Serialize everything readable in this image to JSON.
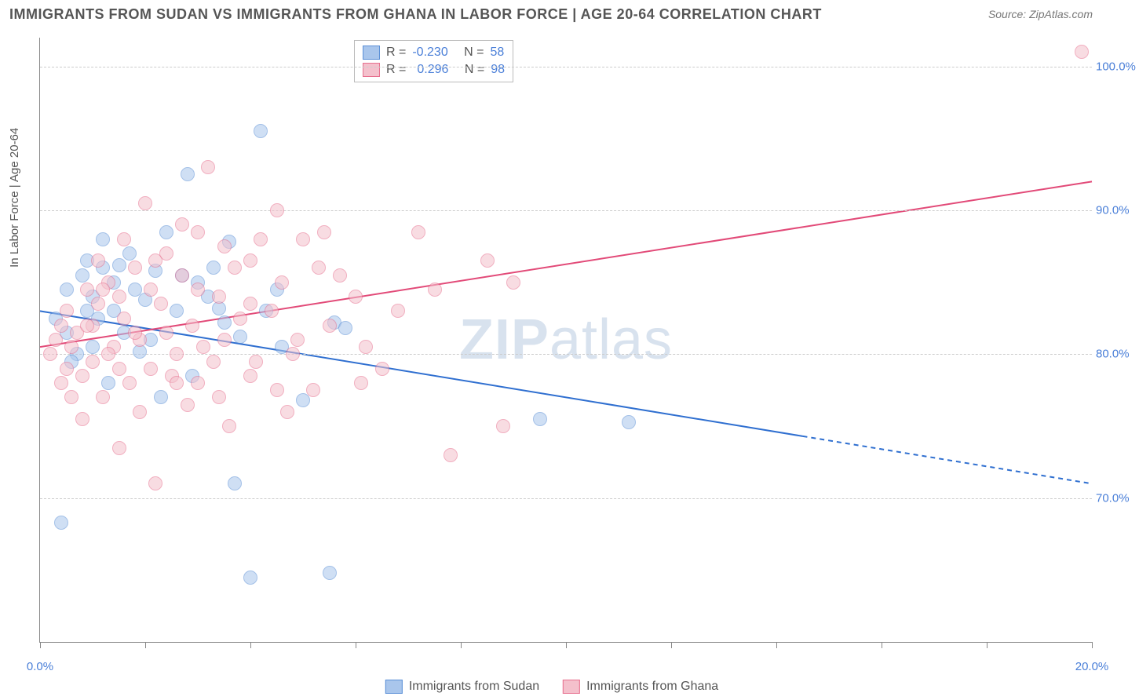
{
  "title": "IMMIGRANTS FROM SUDAN VS IMMIGRANTS FROM GHANA IN LABOR FORCE | AGE 20-64 CORRELATION CHART",
  "source": "Source: ZipAtlas.com",
  "ylabel": "In Labor Force | Age 20-64",
  "watermark_bold": "ZIP",
  "watermark_rest": "atlas",
  "chart": {
    "type": "scatter",
    "xlim": [
      0,
      20
    ],
    "ylim": [
      60,
      102
    ],
    "yticks": [
      70,
      80,
      90,
      100
    ],
    "ytick_labels": [
      "70.0%",
      "80.0%",
      "90.0%",
      "100.0%"
    ],
    "xticks": [
      0,
      2,
      4,
      6,
      8,
      10,
      12,
      14,
      16,
      18,
      20
    ],
    "xtick_labels": {
      "0": "0.0%",
      "20": "20.0%"
    },
    "background_color": "#ffffff",
    "grid_color": "#cccccc",
    "axis_label_color": "#4a7fd8",
    "marker_radius": 8,
    "marker_opacity": 0.55,
    "line_width": 2
  },
  "series": [
    {
      "name": "Immigrants from Sudan",
      "color_fill": "#a9c6ec",
      "color_stroke": "#5a8fd6",
      "color_line": "#2f6fd0",
      "R_label": "R =",
      "R": "-0.230",
      "N_label": "N =",
      "N": "58",
      "trend": {
        "x1": 0,
        "y1": 83.0,
        "x2": 20,
        "y2": 71.0,
        "dash_from_x": 14.5
      },
      "points": [
        [
          0.4,
          68.3
        ],
        [
          1.0,
          84.0
        ],
        [
          0.8,
          85.5
        ],
        [
          1.2,
          86.0
        ],
        [
          1.4,
          85.0
        ],
        [
          1.5,
          86.2
        ],
        [
          1.8,
          84.5
        ],
        [
          2.0,
          83.8
        ],
        [
          2.2,
          85.8
        ],
        [
          2.4,
          88.5
        ],
        [
          2.6,
          83.0
        ],
        [
          2.8,
          92.5
        ],
        [
          3.0,
          85.0
        ],
        [
          3.2,
          84.0
        ],
        [
          3.4,
          83.2
        ],
        [
          3.5,
          82.2
        ],
        [
          3.6,
          87.8
        ],
        [
          3.7,
          71.0
        ],
        [
          3.8,
          81.2
        ],
        [
          4.0,
          64.5
        ],
        [
          4.2,
          95.5
        ],
        [
          4.3,
          83.0
        ],
        [
          4.6,
          80.5
        ],
        [
          5.0,
          76.8
        ],
        [
          5.5,
          64.8
        ],
        [
          5.6,
          82.2
        ],
        [
          5.8,
          81.8
        ],
        [
          1.0,
          80.5
        ],
        [
          1.3,
          78.0
        ],
        [
          0.9,
          83.0
        ],
        [
          1.6,
          81.5
        ],
        [
          1.1,
          82.5
        ],
        [
          0.7,
          80.0
        ],
        [
          0.5,
          81.5
        ],
        [
          0.6,
          79.5
        ],
        [
          1.9,
          80.2
        ],
        [
          2.1,
          81.0
        ],
        [
          1.7,
          87.0
        ],
        [
          3.3,
          86.0
        ],
        [
          4.5,
          84.5
        ],
        [
          9.5,
          75.5
        ],
        [
          11.2,
          75.3
        ],
        [
          2.3,
          77.0
        ],
        [
          2.9,
          78.5
        ],
        [
          1.2,
          88.0
        ],
        [
          0.9,
          86.5
        ],
        [
          0.3,
          82.5
        ],
        [
          0.5,
          84.5
        ],
        [
          1.4,
          83.0
        ],
        [
          2.7,
          85.5
        ]
      ]
    },
    {
      "name": "Immigrants from Ghana",
      "color_fill": "#f4c0cc",
      "color_stroke": "#e76f8e",
      "color_line": "#e24a78",
      "R_label": "R =",
      "R": "0.296",
      "N_label": "N =",
      "N": "98",
      "trend": {
        "x1": 0,
        "y1": 80.5,
        "x2": 20,
        "y2": 92.0,
        "dash_from_x": null
      },
      "points": [
        [
          0.2,
          80.0
        ],
        [
          0.3,
          81.0
        ],
        [
          0.4,
          82.0
        ],
        [
          0.5,
          79.0
        ],
        [
          0.5,
          83.0
        ],
        [
          0.7,
          81.5
        ],
        [
          0.8,
          78.5
        ],
        [
          0.9,
          84.5
        ],
        [
          1.0,
          82.0
        ],
        [
          1.0,
          79.5
        ],
        [
          1.1,
          83.5
        ],
        [
          1.2,
          77.0
        ],
        [
          1.3,
          85.0
        ],
        [
          1.4,
          80.5
        ],
        [
          1.5,
          84.0
        ],
        [
          1.5,
          73.5
        ],
        [
          1.6,
          82.5
        ],
        [
          1.7,
          78.0
        ],
        [
          1.8,
          86.0
        ],
        [
          1.9,
          81.0
        ],
        [
          2.0,
          90.5
        ],
        [
          2.1,
          79.0
        ],
        [
          2.2,
          71.0
        ],
        [
          2.3,
          83.5
        ],
        [
          2.4,
          87.0
        ],
        [
          2.5,
          78.5
        ],
        [
          2.6,
          80.0
        ],
        [
          2.7,
          85.5
        ],
        [
          2.8,
          76.5
        ],
        [
          2.9,
          82.0
        ],
        [
          3.0,
          88.5
        ],
        [
          3.0,
          78.0
        ],
        [
          3.2,
          93.0
        ],
        [
          3.3,
          79.5
        ],
        [
          3.4,
          84.0
        ],
        [
          3.5,
          87.5
        ],
        [
          3.6,
          75.0
        ],
        [
          3.8,
          82.5
        ],
        [
          4.0,
          86.5
        ],
        [
          4.0,
          78.5
        ],
        [
          4.2,
          88.0
        ],
        [
          4.4,
          83.0
        ],
        [
          4.5,
          77.5
        ],
        [
          4.6,
          85.0
        ],
        [
          4.8,
          80.0
        ],
        [
          5.0,
          88.0
        ],
        [
          5.3,
          86.0
        ],
        [
          5.5,
          82.0
        ],
        [
          6.0,
          84.0
        ],
        [
          6.5,
          79.0
        ],
        [
          7.2,
          88.5
        ],
        [
          7.5,
          84.5
        ],
        [
          7.8,
          73.0
        ],
        [
          8.5,
          86.5
        ],
        [
          8.8,
          75.0
        ],
        [
          9.0,
          85.0
        ],
        [
          19.8,
          101.0
        ],
        [
          0.6,
          77.0
        ],
        [
          0.8,
          75.5
        ],
        [
          1.1,
          86.5
        ],
        [
          1.3,
          80.0
        ],
        [
          1.6,
          88.0
        ],
        [
          1.9,
          76.0
        ],
        [
          2.1,
          84.5
        ],
        [
          2.4,
          81.5
        ],
        [
          2.7,
          89.0
        ],
        [
          3.1,
          80.5
        ],
        [
          3.4,
          77.0
        ],
        [
          3.7,
          86.0
        ],
        [
          4.1,
          79.5
        ],
        [
          4.5,
          90.0
        ],
        [
          4.9,
          81.0
        ],
        [
          5.2,
          77.5
        ],
        [
          5.7,
          85.5
        ],
        [
          6.2,
          80.5
        ],
        [
          6.8,
          83.0
        ],
        [
          0.4,
          78.0
        ],
        [
          0.6,
          80.5
        ],
        [
          0.9,
          82.0
        ],
        [
          1.2,
          84.5
        ],
        [
          1.5,
          79.0
        ],
        [
          1.8,
          81.5
        ],
        [
          2.2,
          86.5
        ],
        [
          2.6,
          78.0
        ],
        [
          3.0,
          84.5
        ],
        [
          3.5,
          81.0
        ],
        [
          4.0,
          83.5
        ],
        [
          4.7,
          76.0
        ],
        [
          5.4,
          88.5
        ],
        [
          6.1,
          78.0
        ]
      ]
    }
  ],
  "legend_labels": {
    "sudan": "Immigrants from Sudan",
    "ghana": "Immigrants from Ghana"
  }
}
